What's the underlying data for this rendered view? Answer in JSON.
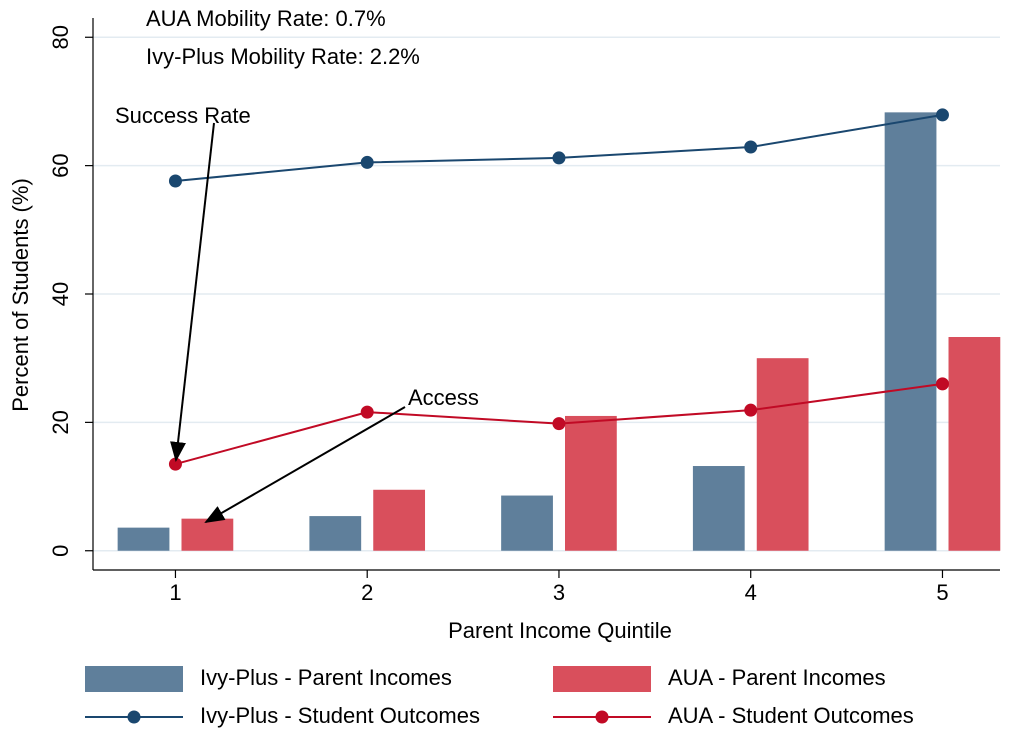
{
  "chart_data": {
    "type": "combo",
    "annotations": [
      "AUA Mobility Rate:  0.7%",
      "Ivy-Plus Mobility Rate:   2.2%",
      "Success Rate",
      "Access"
    ],
    "xlabel": "Parent Income Quintile",
    "ylabel": "Percent of Students (%)",
    "x": [
      1,
      2,
      3,
      4,
      5
    ],
    "xlim": [
      0.57,
      5.3
    ],
    "xticks": [
      1,
      2,
      3,
      4,
      5
    ],
    "ylim": [
      -3,
      83
    ],
    "yticks": [
      0,
      20,
      40,
      60,
      80
    ],
    "grid": true,
    "series": [
      {
        "name": "Ivy-Plus - Parent Incomes",
        "type": "bar",
        "color": "#5f7f9b",
        "values": [
          3.6,
          5.4,
          8.6,
          13.2,
          68.3
        ]
      },
      {
        "name": "AUA - Parent Incomes",
        "type": "bar",
        "color": "#d94f5c",
        "values": [
          5.0,
          9.5,
          21.0,
          30.0,
          33.3
        ]
      },
      {
        "name": "Ivy-Plus - Student Outcomes",
        "type": "line",
        "color": "#1a476f",
        "values": [
          57.6,
          60.5,
          61.2,
          62.9,
          67.9
        ]
      },
      {
        "name": "AUA - Student Outcomes",
        "type": "line",
        "color": "#c10a25",
        "values": [
          13.5,
          21.6,
          19.8,
          21.9,
          26.0
        ]
      }
    ]
  }
}
